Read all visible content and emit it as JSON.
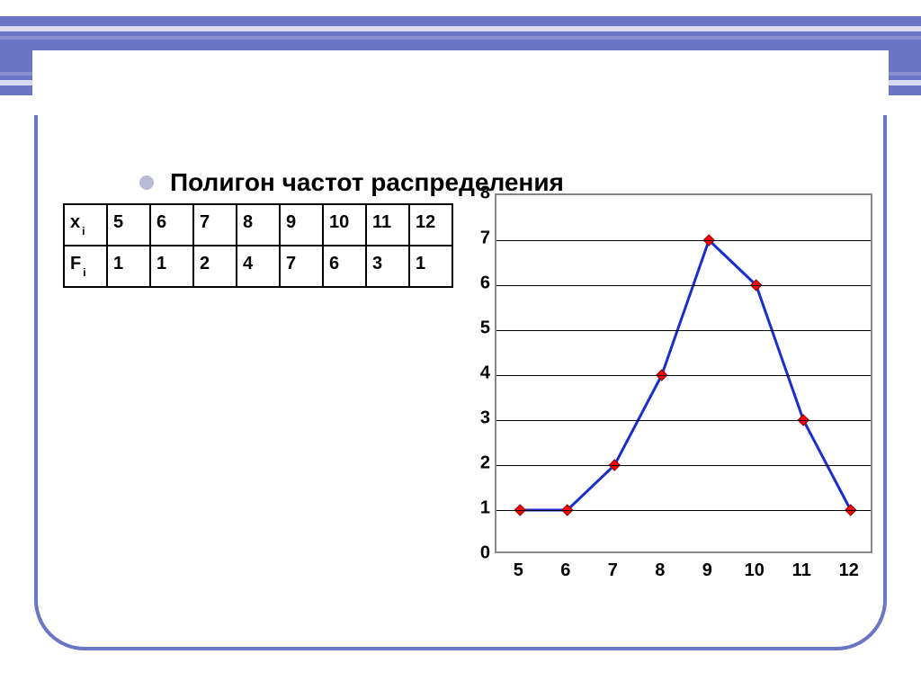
{
  "title": "Полигон частот распределения",
  "table": {
    "row1_header": "x",
    "row1_sub": "i",
    "row2_header": "F",
    "row2_sub": "i",
    "x_values": [
      "5",
      "6",
      "7",
      "8",
      "9",
      "10",
      "11",
      "12"
    ],
    "f_values": [
      "1",
      "1",
      "2",
      "4",
      "7",
      "6",
      "3",
      "1"
    ]
  },
  "chart": {
    "type": "line",
    "x_values": [
      5,
      6,
      7,
      8,
      9,
      10,
      11,
      12
    ],
    "y_values": [
      1,
      1,
      2,
      4,
      7,
      6,
      3,
      1
    ],
    "ylim": [
      0,
      8
    ],
    "xlim": [
      5,
      12
    ],
    "ytick_step": 1,
    "xtick_step": 1,
    "line_color": "#1a2ec9",
    "line_width": 3,
    "marker_color": "#ff0000",
    "marker_border": "#8b0000",
    "marker_size": 6,
    "grid_color": "#000000",
    "border_color": "#888888",
    "background_color": "#ffffff",
    "label_fontsize": 20,
    "label_fontweight": "bold",
    "label_color": "#000000",
    "y_labels": [
      "0",
      "1",
      "2",
      "3",
      "4",
      "5",
      "6",
      "7",
      "8"
    ],
    "x_labels": [
      "5",
      "6",
      "7",
      "8",
      "9",
      "10",
      "11",
      "12"
    ]
  },
  "colors": {
    "header_band": "#6a75c3",
    "frame_border": "#6a75c3",
    "bullet": "#b8bbd3",
    "title_text": "#000000",
    "body_bg": "#ffffff"
  }
}
